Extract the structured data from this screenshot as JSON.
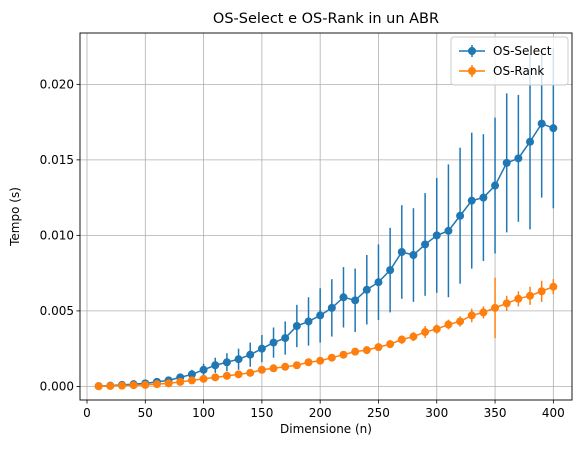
{
  "chart_data": {
    "type": "line",
    "title": "OS-Select e OS-Rank in un ABR",
    "xlabel": "Dimensione (n)",
    "ylabel": "Tempo (s)",
    "xlim": [
      -6,
      416
    ],
    "ylim": [
      -0.0009,
      0.0234
    ],
    "xticks": [
      0,
      50,
      100,
      150,
      200,
      250,
      300,
      350,
      400
    ],
    "yticks": [
      0.0,
      0.005,
      0.01,
      0.015,
      0.02
    ],
    "ytick_labels": [
      "0.000",
      "0.005",
      "0.010",
      "0.015",
      "0.020"
    ],
    "grid": true,
    "legend_position": "top-right",
    "error_bars": true,
    "x": [
      10,
      20,
      30,
      40,
      50,
      60,
      70,
      80,
      90,
      100,
      110,
      120,
      130,
      140,
      150,
      160,
      170,
      180,
      190,
      200,
      210,
      220,
      230,
      240,
      250,
      260,
      270,
      280,
      290,
      300,
      310,
      320,
      330,
      340,
      350,
      360,
      370,
      380,
      390,
      400
    ],
    "series": [
      {
        "name": "OS-Select",
        "color": "#1f77b4",
        "values": [
          2e-05,
          5e-05,
          0.0001,
          0.00015,
          0.0002,
          0.0003,
          0.0004,
          0.0006,
          0.0008,
          0.0011,
          0.0014,
          0.0016,
          0.0018,
          0.0021,
          0.0025,
          0.0029,
          0.0032,
          0.004,
          0.0043,
          0.0047,
          0.0052,
          0.0059,
          0.0057,
          0.0064,
          0.0069,
          0.0077,
          0.0089,
          0.0087,
          0.0094,
          0.01,
          0.0103,
          0.0113,
          0.0123,
          0.0125,
          0.0133,
          0.0148,
          0.0151,
          0.0162,
          0.0174,
          0.0171
        ],
        "errors": [
          2e-05,
          3e-05,
          4e-05,
          5e-05,
          8e-05,
          0.0001,
          0.00015,
          0.0002,
          0.0003,
          0.0004,
          0.0005,
          0.0006,
          0.0007,
          0.0008,
          0.0009,
          0.001,
          0.0011,
          0.0014,
          0.0016,
          0.0018,
          0.0019,
          0.002,
          0.0021,
          0.0023,
          0.0025,
          0.0028,
          0.0031,
          0.0031,
          0.0034,
          0.0038,
          0.0044,
          0.0045,
          0.0045,
          0.0042,
          0.0045,
          0.0046,
          0.0042,
          0.0058,
          0.0049,
          0.0053
        ]
      },
      {
        "name": "OS-Rank",
        "color": "#ff7f0e",
        "values": [
          1e-05,
          3e-05,
          5e-05,
          8e-05,
          0.0001,
          0.00015,
          0.0002,
          0.0003,
          0.0004,
          0.0005,
          0.0006,
          0.0007,
          0.0008,
          0.0009,
          0.0011,
          0.0012,
          0.0013,
          0.0014,
          0.0016,
          0.0017,
          0.0019,
          0.0021,
          0.0023,
          0.0024,
          0.0026,
          0.0028,
          0.0031,
          0.0033,
          0.0036,
          0.0038,
          0.0041,
          0.0043,
          0.0047,
          0.0049,
          0.0052,
          0.0055,
          0.0058,
          0.006,
          0.0063,
          0.0066
        ],
        "errors": [
          1e-05,
          1e-05,
          1e-05,
          2e-05,
          2e-05,
          3e-05,
          4e-05,
          5e-05,
          6e-05,
          7e-05,
          8e-05,
          9e-05,
          0.0001,
          0.0001,
          0.00012,
          0.00013,
          0.00014,
          0.00015,
          0.00016,
          0.00017,
          0.00018,
          0.0002,
          0.0002,
          0.00022,
          0.00024,
          0.00026,
          0.00028,
          0.0003,
          0.0004,
          0.0003,
          0.00032,
          0.00034,
          0.00045,
          0.0004,
          0.002,
          0.0005,
          0.0005,
          0.0006,
          0.0007,
          0.0005
        ]
      }
    ]
  }
}
